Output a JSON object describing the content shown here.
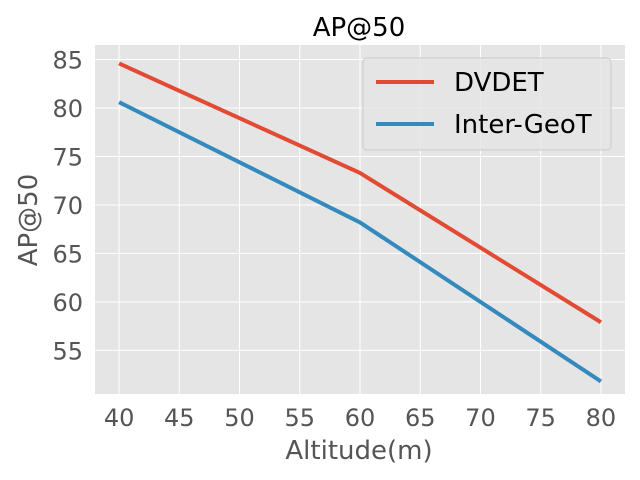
{
  "chart_data": {
    "type": "line",
    "title": "AP@50",
    "xlabel": "Altitude(m)",
    "ylabel": "AP@50",
    "x": [
      40,
      60,
      80
    ],
    "xlim": [
      38,
      82
    ],
    "ylim": [
      50.5,
      86.5
    ],
    "xticks": [
      40,
      45,
      50,
      55,
      60,
      65,
      70,
      75,
      80
    ],
    "yticks": [
      55,
      60,
      65,
      70,
      75,
      80,
      85
    ],
    "grid": true,
    "legend_position": "top-right",
    "series": [
      {
        "name": "DVDET",
        "values": [
          84.6,
          73.3,
          57.9
        ],
        "color": "#E24A33"
      },
      {
        "name": "Inter-GeoT",
        "values": [
          80.6,
          68.2,
          51.8
        ],
        "color": "#348ABD"
      }
    ],
    "colors": {
      "plot_bg": "#E5E5E5",
      "grid": "#FFFFFF",
      "legend_bg": "#E5E5E5",
      "legend_border": "#CCCCCC"
    }
  }
}
